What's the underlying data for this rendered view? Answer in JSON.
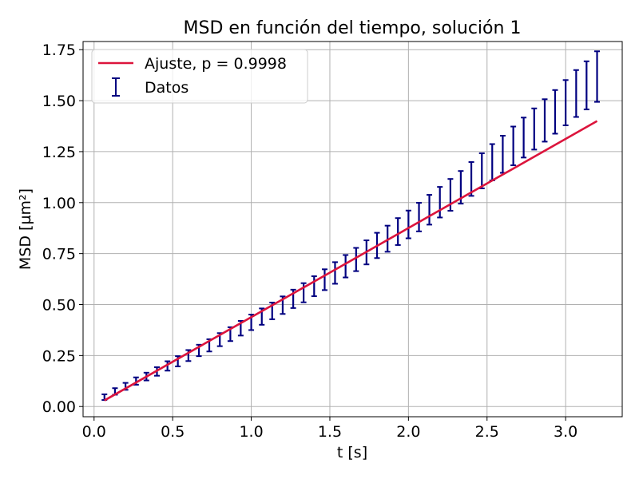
{
  "chart_data": {
    "type": "line",
    "title": "MSD en función del tiempo, solución 1",
    "xlabel": "t [s]",
    "ylabel": "MSD [µm²]",
    "xlim": [
      -0.07,
      3.36
    ],
    "ylim": [
      -0.05,
      1.79
    ],
    "xticks": [
      0.0,
      0.5,
      1.0,
      1.5,
      2.0,
      2.5,
      3.0
    ],
    "xtick_labels": [
      "0.0",
      "0.5",
      "1.0",
      "1.5",
      "2.0",
      "2.5",
      "3.0"
    ],
    "yticks": [
      0.0,
      0.25,
      0.5,
      0.75,
      1.0,
      1.25,
      1.5,
      1.75
    ],
    "ytick_labels": [
      "0.00",
      "0.25",
      "0.50",
      "0.75",
      "1.00",
      "1.25",
      "1.50",
      "1.75"
    ],
    "grid": true,
    "legend_position": "top-left",
    "series": [
      {
        "name": "Ajuste, p = 0.9998",
        "kind": "line",
        "color": "#dc143c",
        "x": [
          0.066,
          3.2
        ],
        "y": [
          0.03,
          1.4
        ]
      },
      {
        "name": "Datos",
        "kind": "errorbar",
        "color": "#000080",
        "x": [
          0.066,
          0.133,
          0.2,
          0.267,
          0.333,
          0.4,
          0.467,
          0.533,
          0.6,
          0.667,
          0.733,
          0.8,
          0.867,
          0.933,
          1.0,
          1.067,
          1.133,
          1.2,
          1.267,
          1.333,
          1.4,
          1.467,
          1.533,
          1.6,
          1.667,
          1.733,
          1.8,
          1.867,
          1.933,
          2.0,
          2.067,
          2.133,
          2.2,
          2.267,
          2.333,
          2.4,
          2.467,
          2.533,
          2.6,
          2.667,
          2.733,
          2.8,
          2.867,
          2.933,
          3.0,
          3.067,
          3.133,
          3.2
        ],
        "y": [
          0.046,
          0.074,
          0.099,
          0.125,
          0.147,
          0.172,
          0.199,
          0.222,
          0.25,
          0.275,
          0.3,
          0.328,
          0.355,
          0.384,
          0.413,
          0.441,
          0.469,
          0.497,
          0.528,
          0.558,
          0.59,
          0.622,
          0.655,
          0.688,
          0.721,
          0.756,
          0.79,
          0.823,
          0.858,
          0.893,
          0.929,
          0.965,
          1.002,
          1.038,
          1.075,
          1.116,
          1.156,
          1.198,
          1.237,
          1.278,
          1.319,
          1.361,
          1.403,
          1.445,
          1.49,
          1.535,
          1.575,
          1.618
        ],
        "err": [
          0.014,
          0.016,
          0.017,
          0.018,
          0.019,
          0.021,
          0.023,
          0.025,
          0.027,
          0.028,
          0.03,
          0.032,
          0.034,
          0.036,
          0.038,
          0.04,
          0.041,
          0.043,
          0.045,
          0.047,
          0.049,
          0.051,
          0.053,
          0.055,
          0.057,
          0.059,
          0.062,
          0.064,
          0.066,
          0.068,
          0.07,
          0.073,
          0.075,
          0.078,
          0.08,
          0.083,
          0.086,
          0.089,
          0.091,
          0.095,
          0.098,
          0.101,
          0.104,
          0.107,
          0.111,
          0.115,
          0.118,
          0.124
        ]
      }
    ]
  }
}
